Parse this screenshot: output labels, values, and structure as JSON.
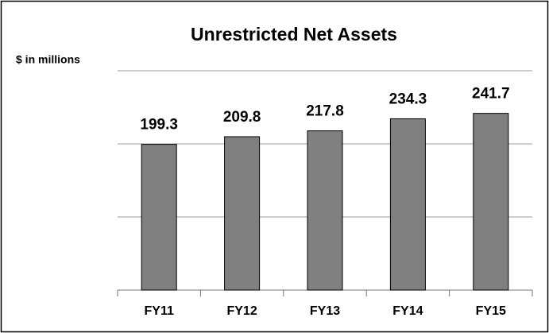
{
  "chart_data": {
    "type": "bar",
    "title": "Unrestricted Net Assets",
    "y_label": "$ in millions",
    "categories": [
      "FY11",
      "FY12",
      "FY13",
      "FY14",
      "FY15"
    ],
    "values": [
      199.3,
      209.8,
      217.8,
      234.3,
      241.7
    ],
    "color": "#808080",
    "ylim": [
      0,
      300
    ],
    "yticks": [
      0,
      100,
      200,
      300
    ],
    "grid": true
  }
}
